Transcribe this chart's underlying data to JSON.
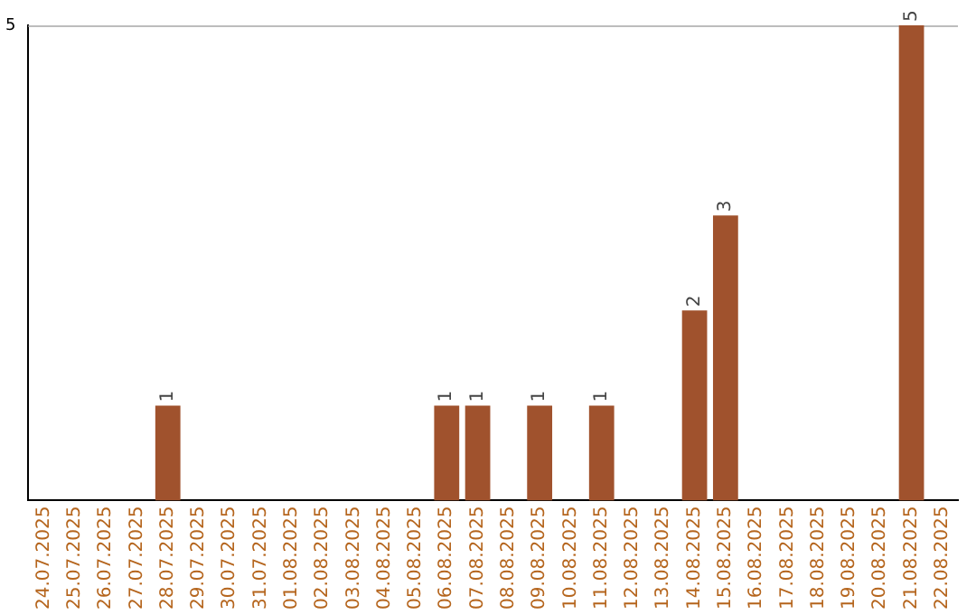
{
  "chart_data": {
    "type": "bar",
    "categories": [
      "24.07.2025",
      "25.07.2025",
      "26.07.2025",
      "27.07.2025",
      "28.07.2025",
      "29.07.2025",
      "30.07.2025",
      "31.07.2025",
      "01.08.2025",
      "02.08.2025",
      "03.08.2025",
      "04.08.2025",
      "05.08.2025",
      "06.08.2025",
      "07.08.2025",
      "08.08.2025",
      "09.08.2025",
      "10.08.2025",
      "11.08.2025",
      "12.08.2025",
      "13.08.2025",
      "14.08.2025",
      "15.08.2025",
      "16.08.2025",
      "17.08.2025",
      "18.08.2025",
      "19.08.2025",
      "20.08.2025",
      "21.08.2025",
      "22.08.2025"
    ],
    "values": [
      0,
      0,
      0,
      0,
      1,
      0,
      0,
      0,
      0,
      0,
      0,
      0,
      0,
      1,
      1,
      0,
      1,
      0,
      1,
      0,
      0,
      2,
      3,
      0,
      0,
      0,
      0,
      0,
      5,
      0
    ],
    "value_labels": [
      null,
      null,
      null,
      null,
      "1",
      null,
      null,
      null,
      null,
      null,
      null,
      null,
      null,
      "1",
      "1",
      null,
      "1",
      null,
      "1",
      null,
      null,
      "2",
      "3",
      null,
      null,
      null,
      null,
      null,
      "5",
      null
    ],
    "color": "#a0522d",
    "ylim": [
      0,
      5
    ],
    "yticks": [
      5
    ]
  }
}
